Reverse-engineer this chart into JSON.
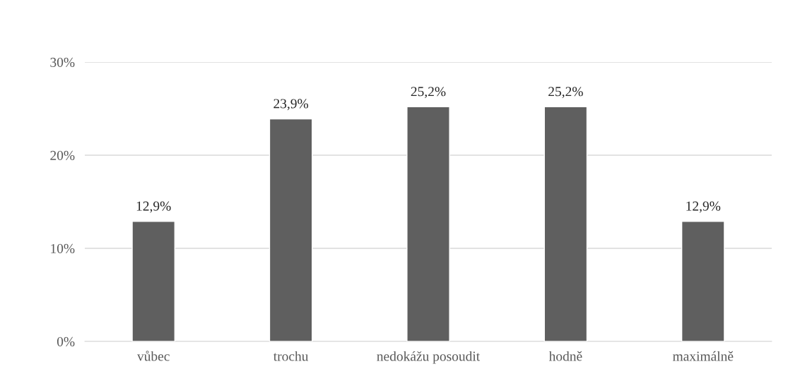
{
  "chart_data": {
    "type": "bar",
    "categories": [
      "vůbec",
      "trochu",
      "nedokážu posoudit",
      "hodně",
      "maximálně"
    ],
    "values": [
      12.9,
      23.9,
      25.2,
      25.2,
      12.9
    ],
    "value_labels": [
      "12,9%",
      "23,9%",
      "25,2%",
      "25,2%",
      "12,9%"
    ],
    "color": "#5f5f5f",
    "ylim": [
      0,
      30
    ],
    "yticks": [
      {
        "value": 0,
        "label": "0%"
      },
      {
        "value": 10,
        "label": "10%"
      },
      {
        "value": 20,
        "label": "20%"
      },
      {
        "value": 30,
        "label": "30%"
      }
    ],
    "grid": "y"
  }
}
